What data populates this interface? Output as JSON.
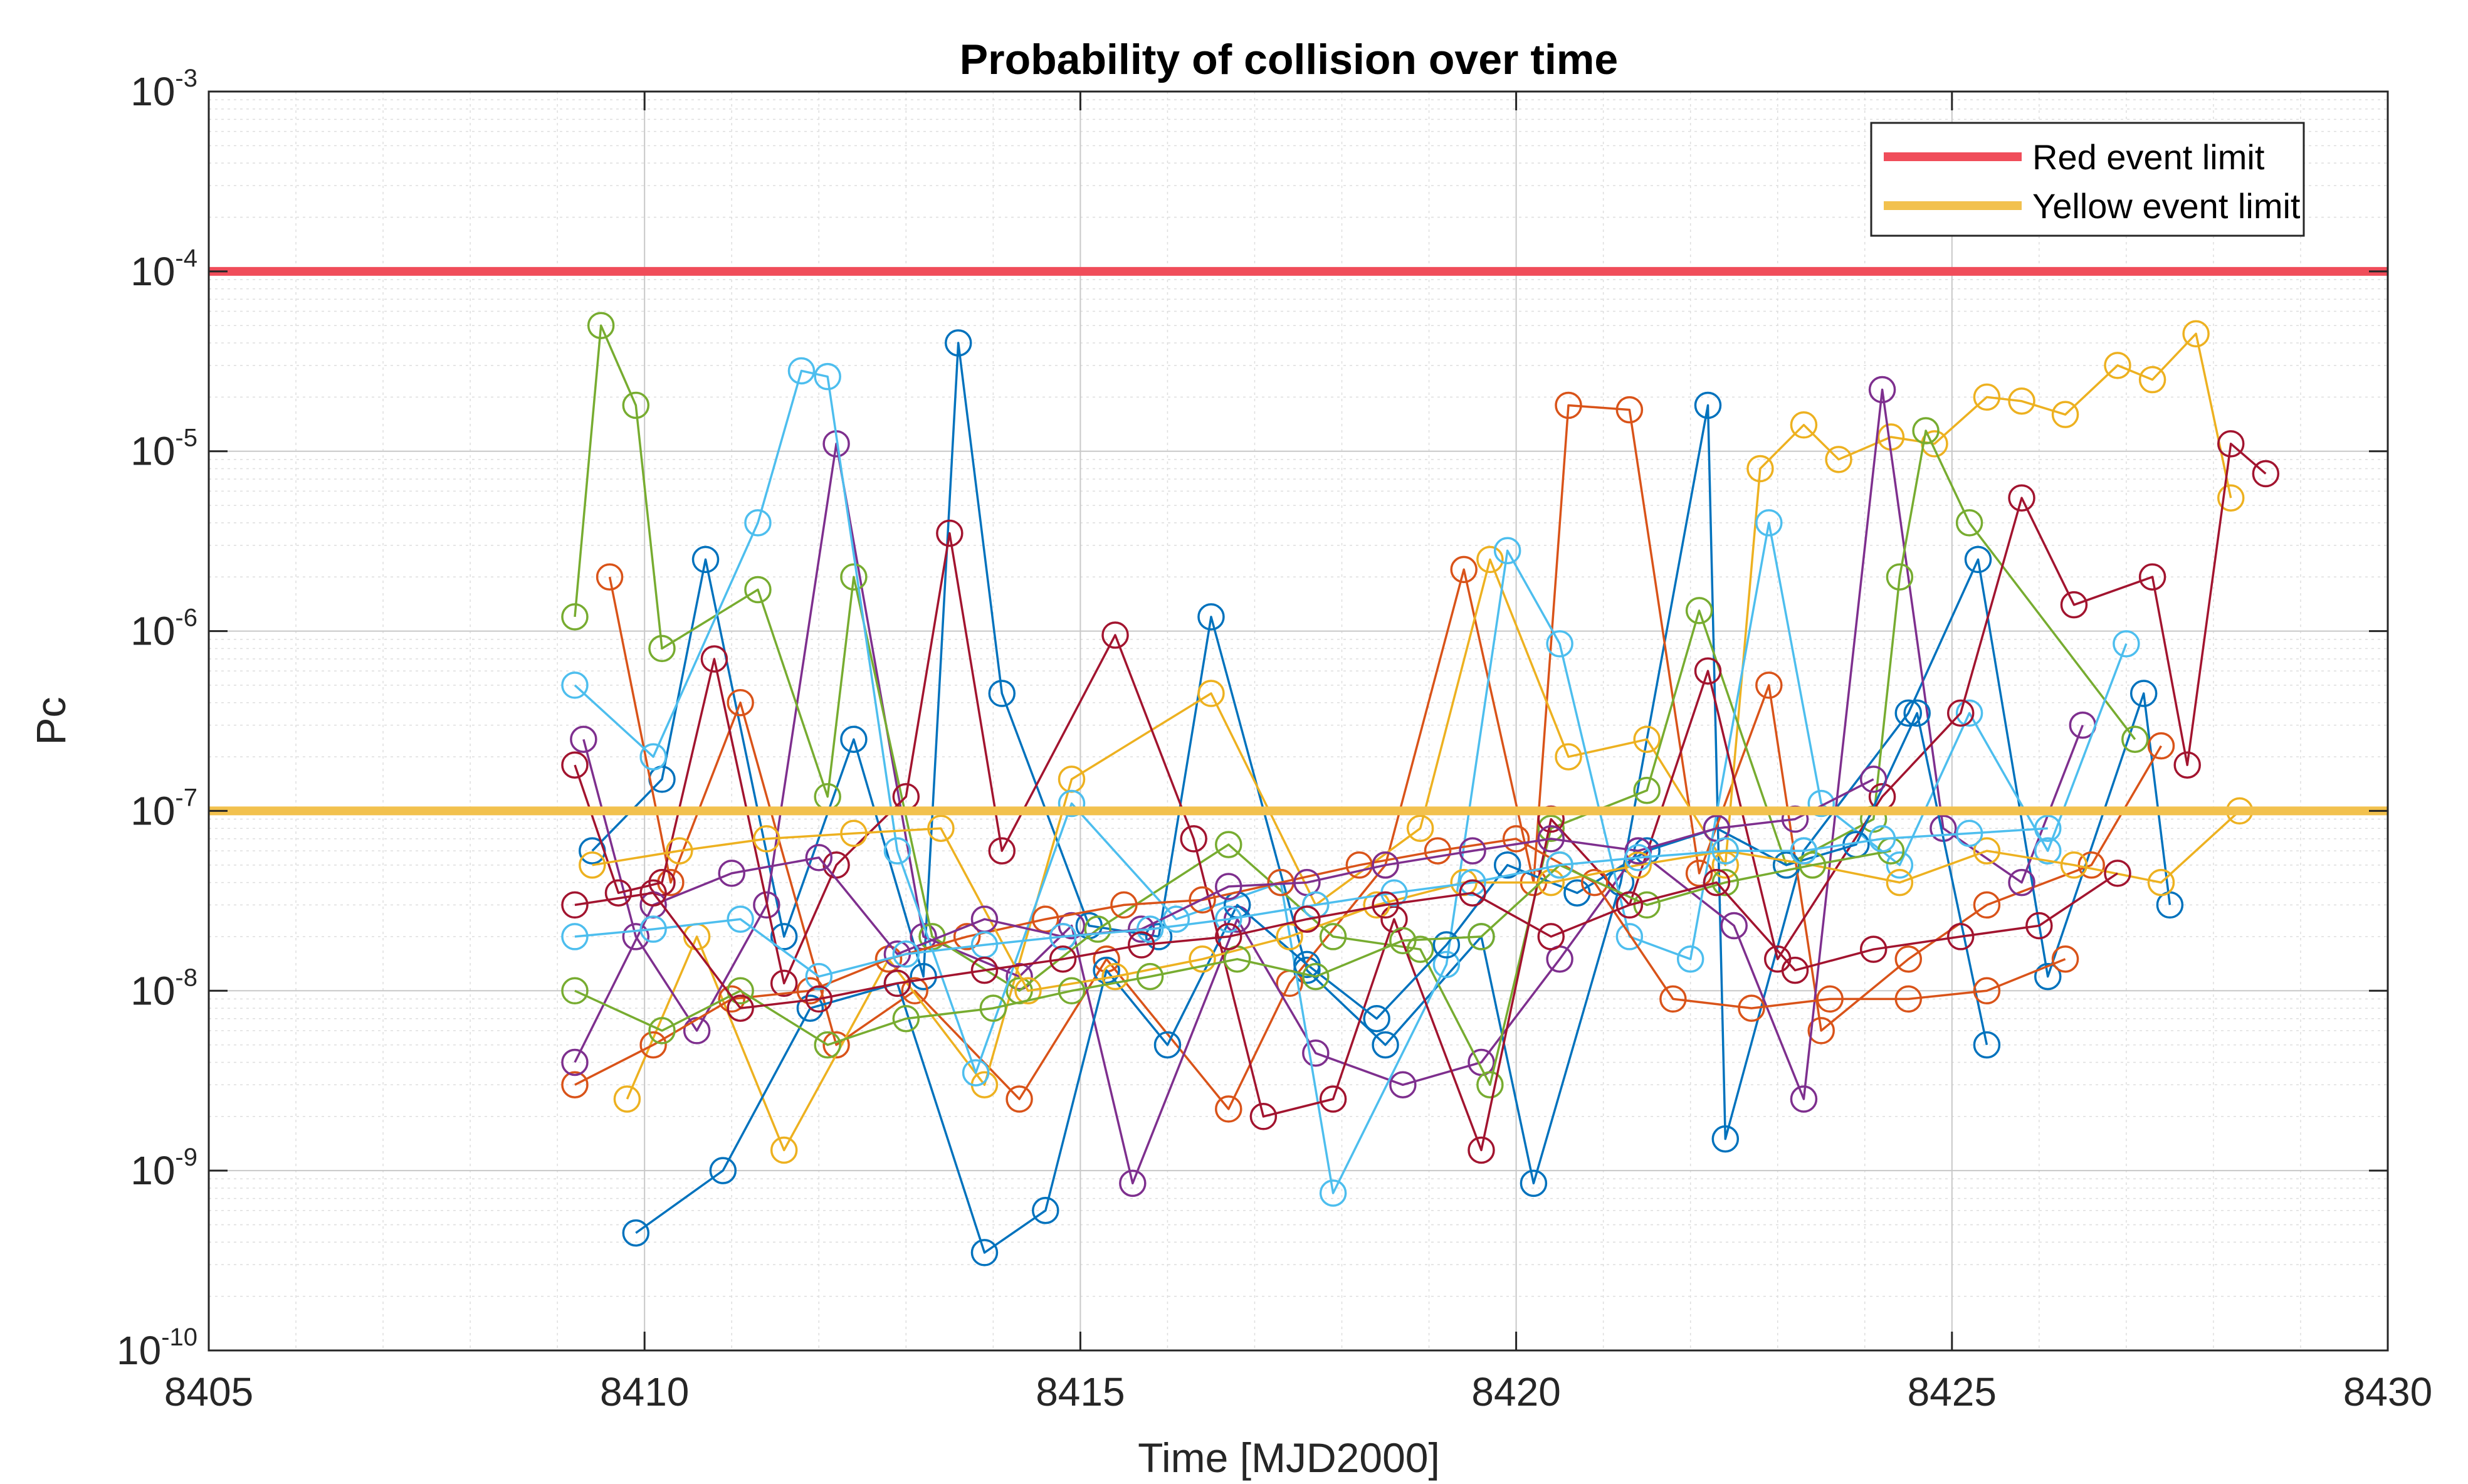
{
  "chart_data": {
    "type": "line",
    "title": "Probability of collision over time",
    "xlabel": "Time [MJD2000]",
    "ylabel": "Pc",
    "xlim": [
      8405,
      8430
    ],
    "ylim": [
      1e-10,
      0.001
    ],
    "yscale": "log",
    "grid": true,
    "minor_grid": true,
    "legend_position": "top-right",
    "x_ticks": [
      {
        "value": 8405,
        "label": "8405"
      },
      {
        "value": 8410,
        "label": "8410"
      },
      {
        "value": 8415,
        "label": "8415"
      },
      {
        "value": 8420,
        "label": "8420"
      },
      {
        "value": 8425,
        "label": "8425"
      },
      {
        "value": 8430,
        "label": "8430"
      }
    ],
    "y_ticks": [
      {
        "exp": -10,
        "base": "10",
        "sup": "-10"
      },
      {
        "exp": -9,
        "base": "10",
        "sup": "-9"
      },
      {
        "exp": -8,
        "base": "10",
        "sup": "-8"
      },
      {
        "exp": -7,
        "base": "10",
        "sup": "-7"
      },
      {
        "exp": -6,
        "base": "10",
        "sup": "-6"
      },
      {
        "exp": -5,
        "base": "10",
        "sup": "-5"
      },
      {
        "exp": -4,
        "base": "10",
        "sup": "-4"
      },
      {
        "exp": -3,
        "base": "10",
        "sup": "-3"
      }
    ],
    "thresholds": [
      {
        "name": "Red event limit",
        "value": 0.0001,
        "color": "#f04d5a"
      },
      {
        "name": "Yellow event limit",
        "value": 1e-07,
        "color": "#f2c14e"
      }
    ],
    "palette": [
      "#0072bd",
      "#d95319",
      "#edb120",
      "#7e2f8e",
      "#77ac30",
      "#4dbeee",
      "#a2142f"
    ],
    "series": [
      {
        "color": "#0072bd",
        "x": [
          8409.4,
          8410.2,
          8410.7,
          8411.6,
          8412.4,
          8413.2,
          8413.6,
          8414.1,
          8415.1,
          8415.9,
          8416.5,
          8417.6,
          8418.5,
          8419.6,
          8420.2,
          8421.2,
          8422.2,
          8422.4,
          8423.3,
          8424.5,
          8425.3,
          8426.1,
          8427.2,
          8427.5
        ],
        "y": [
          6e-08,
          1.5e-07,
          2.5e-06,
          2e-08,
          2.5e-07,
          1.2e-08,
          4e-05,
          4.5e-07,
          2.3e-08,
          2e-08,
          1.2e-06,
          1.3e-08,
          5e-09,
          2e-08,
          8.5e-10,
          4e-08,
          1.8e-05,
          1.5e-09,
          6e-08,
          3.5e-07,
          2.5e-06,
          1.2e-08,
          4.5e-07,
          3e-08
        ]
      },
      {
        "color": "#d95319",
        "x": [
          8409.6,
          8410.3,
          8411.1,
          8412.2,
          8413.1,
          8414.3,
          8415.3,
          8416.7,
          8417.4,
          8418.5,
          8419.4,
          8420.2,
          8420.6,
          8421.3,
          8422.1,
          8422.9,
          8423.5,
          8424.5,
          8425.4,
          8426.6,
          8427.4
        ],
        "y": [
          2e-06,
          4e-08,
          4e-07,
          5e-09,
          1e-08,
          2.5e-09,
          1.5e-08,
          2.2e-09,
          1.1e-08,
          5e-08,
          2.2e-06,
          4e-08,
          1.8e-05,
          1.7e-05,
          4.5e-08,
          5e-07,
          6e-09,
          1.5e-08,
          3e-08,
          5e-08,
          2.3e-07
        ]
      },
      {
        "color": "#edb120",
        "x": [
          8409.8,
          8410.6,
          8411.6,
          8412.8,
          8413.9,
          8414.9,
          8416.5,
          8417.7,
          8418.9,
          8419.7,
          8420.6,
          8421.5,
          8422.4,
          8422.8,
          8423.3,
          8423.7,
          8424.3,
          8424.8,
          8425.4,
          8425.8,
          8426.3,
          8426.9,
          8427.3,
          8427.8,
          8428.2
        ],
        "y": [
          2.5e-09,
          2e-08,
          1.3e-09,
          1.5e-08,
          3e-09,
          1.5e-07,
          4.5e-07,
          3e-08,
          8e-08,
          2.5e-06,
          2e-07,
          2.5e-07,
          5e-08,
          8e-06,
          1.4e-05,
          9e-06,
          1.2e-05,
          1.1e-05,
          2e-05,
          1.9e-05,
          1.6e-05,
          3e-05,
          2.5e-05,
          4.5e-05,
          5.5e-06
        ]
      },
      {
        "color": "#7e2f8e",
        "x": [
          8409.3,
          8409.9,
          8410.6,
          8411.4,
          8412.2,
          8413.2,
          8414.3,
          8414.9,
          8415.6,
          8416.8,
          8417.7,
          8418.7,
          8419.6,
          8420.5,
          8421.4,
          8422.5,
          8423.3,
          8424.2,
          8424.9,
          8425.8,
          8426.5
        ],
        "y": [
          2.5e-07,
          2e-08,
          6e-09,
          3e-08,
          1.1e-05,
          2e-08,
          1.2e-08,
          2.3e-08,
          8.5e-10,
          2.5e-08,
          4.5e-09,
          3e-09,
          4e-09,
          1.5e-08,
          6e-08,
          2.3e-08,
          2.5e-09,
          2.2e-05,
          8e-08,
          4e-08,
          3e-07
        ]
      },
      {
        "color": "#77ac30",
        "x": [
          8409.2,
          8409.5,
          8409.9,
          8410.2,
          8411.3,
          8412.1,
          8412.4,
          8413.3,
          8414.3,
          8415.2,
          8416.7,
          8417.9,
          8418.9,
          8419.7,
          8420.4,
          8421.5,
          8422.1,
          8423.1,
          8424.1,
          8424.4,
          8424.7,
          8425.2,
          8427.1
        ],
        "y": [
          1.2e-06,
          5e-05,
          1.8e-05,
          8e-07,
          1.7e-06,
          1.2e-07,
          2e-06,
          2e-08,
          1e-08,
          2.2e-08,
          6.5e-08,
          2e-08,
          1.7e-08,
          3e-09,
          8e-08,
          1.3e-07,
          1.3e-06,
          5e-08,
          9e-08,
          2e-06,
          1.3e-05,
          4e-06,
          2.5e-07
        ]
      },
      {
        "color": "#4dbeee",
        "x": [
          8409.2,
          8410.1,
          8411.3,
          8411.8,
          8412.1,
          8412.9,
          8413.8,
          8414.9,
          8416.1,
          8417.3,
          8417.9,
          8419.2,
          8419.9,
          8420.5,
          8421.3,
          8422.0,
          8422.9,
          8423.5,
          8424.4,
          8425.2,
          8426.1,
          8427.0
        ],
        "y": [
          5e-07,
          2e-07,
          4e-06,
          2.8e-05,
          2.6e-05,
          6e-08,
          3.5e-09,
          1.1e-07,
          2.5e-08,
          4e-08,
          7.5e-10,
          1.4e-08,
          2.8e-06,
          8.5e-07,
          2e-08,
          1.5e-08,
          4e-06,
          1.1e-07,
          5e-08,
          3.5e-07,
          6e-08,
          8.5e-07
        ]
      },
      {
        "color": "#a2142f",
        "x": [
          8409.2,
          8409.7,
          8410.2,
          8410.8,
          8411.6,
          8412.2,
          8413.0,
          8413.5,
          8414.1,
          8415.4,
          8416.3,
          8417.1,
          8417.9,
          8418.6,
          8419.6,
          8420.4,
          8421.3,
          8422.2,
          8423.0,
          8424.2,
          8425.1,
          8425.8,
          8426.4,
          8427.3,
          8427.7,
          8428.2,
          8428.6
        ],
        "y": [
          1.8e-07,
          3.5e-08,
          4e-08,
          7e-07,
          1.1e-08,
          5e-08,
          1.2e-07,
          3.5e-06,
          6e-08,
          9.5e-07,
          7e-08,
          2e-09,
          2.5e-09,
          2.5e-08,
          1.3e-09,
          9e-08,
          3e-08,
          6e-07,
          1.5e-08,
          1.2e-07,
          3.5e-07,
          5.5e-06,
          1.4e-06,
          2e-06,
          1.8e-07,
          1.1e-05,
          7.5e-06
        ]
      },
      {
        "color": "#0072bd",
        "x": [
          8409.9,
          8410.9,
          8411.9,
          8412.9,
          8413.9,
          8414.6,
          8415.3,
          8416.0,
          8416.8,
          8417.6,
          8418.4,
          8419.2,
          8419.9,
          8420.7,
          8421.5,
          8422.3,
          8423.1,
          8423.9,
          8424.6,
          8425.4
        ],
        "y": [
          4.5e-10,
          1e-09,
          8e-09,
          1.1e-08,
          3.5e-10,
          6e-10,
          1.3e-08,
          5e-09,
          3e-08,
          1.4e-08,
          7e-09,
          1.8e-08,
          5e-08,
          3.5e-08,
          6e-08,
          8e-08,
          5e-08,
          6.5e-08,
          3.5e-07,
          5e-09
        ]
      },
      {
        "color": "#d95319",
        "x": [
          8409.2,
          8410.1,
          8411.0,
          8411.9,
          8412.8,
          8413.7,
          8414.6,
          8415.5,
          8416.4,
          8417.3,
          8418.2,
          8419.1,
          8420.0,
          8420.9,
          8421.8,
          8422.7,
          8423.6,
          8424.5,
          8425.4,
          8426.3
        ],
        "y": [
          3e-09,
          5e-09,
          9e-09,
          1e-08,
          1.5e-08,
          2e-08,
          2.5e-08,
          3e-08,
          3.2e-08,
          4e-08,
          5e-08,
          6e-08,
          7e-08,
          4e-08,
          9e-09,
          8e-09,
          9e-09,
          9e-09,
          1e-08,
          1.5e-08
        ]
      },
      {
        "color": "#edb120",
        "x": [
          8409.4,
          8410.4,
          8411.4,
          8412.4,
          8413.4,
          8414.4,
          8415.4,
          8416.4,
          8417.4,
          8418.4,
          8419.4,
          8420.4,
          8421.4,
          8422.4,
          8423.4,
          8424.4,
          8425.4,
          8426.4,
          8427.4,
          8428.3
        ],
        "y": [
          5e-08,
          6e-08,
          7e-08,
          7.5e-08,
          8e-08,
          1e-08,
          1.2e-08,
          1.5e-08,
          2e-08,
          3e-08,
          4e-08,
          4e-08,
          5e-08,
          6e-08,
          5e-08,
          4e-08,
          6e-08,
          5e-08,
          4e-08,
          1e-07
        ]
      },
      {
        "color": "#7e2f8e",
        "x": [
          8409.2,
          8410.1,
          8411.0,
          8412.0,
          8412.9,
          8413.9,
          8414.8,
          8415.7,
          8416.7,
          8417.6,
          8418.5,
          8419.5,
          8420.4,
          8421.4,
          8422.3,
          8423.2,
          8424.1
        ],
        "y": [
          4e-09,
          3e-08,
          4.5e-08,
          5.5e-08,
          1.6e-08,
          2.5e-08,
          2e-08,
          2.2e-08,
          3.8e-08,
          4e-08,
          5e-08,
          6e-08,
          7e-08,
          6e-08,
          8e-08,
          9e-08,
          1.5e-07
        ]
      },
      {
        "color": "#77ac30",
        "x": [
          8409.2,
          8410.2,
          8411.1,
          8412.1,
          8413.0,
          8414.0,
          8414.9,
          8415.8,
          8416.8,
          8417.7,
          8418.7,
          8419.6,
          8420.5,
          8421.5,
          8422.4,
          8423.4,
          8424.3
        ],
        "y": [
          1e-08,
          6e-09,
          1e-08,
          5e-09,
          7e-09,
          8e-09,
          1e-08,
          1.2e-08,
          1.5e-08,
          1.2e-08,
          1.9e-08,
          2e-08,
          5e-08,
          3e-08,
          4e-08,
          5e-08,
          6e-08
        ]
      },
      {
        "color": "#4dbeee",
        "x": [
          8409.2,
          8410.1,
          8411.1,
          8412.0,
          8413.0,
          8413.9,
          8414.8,
          8415.8,
          8416.7,
          8417.7,
          8418.6,
          8419.5,
          8420.5,
          8421.4,
          8422.4,
          8423.3,
          8424.2,
          8425.2,
          8426.1
        ],
        "y": [
          2e-08,
          2.2e-08,
          2.5e-08,
          1.2e-08,
          1.6e-08,
          1.8e-08,
          2e-08,
          2.2e-08,
          2.5e-08,
          3e-08,
          3.5e-08,
          4e-08,
          5e-08,
          5.5e-08,
          6e-08,
          6e-08,
          7e-08,
          7.5e-08,
          8e-08
        ]
      },
      {
        "color": "#a2142f",
        "x": [
          8409.2,
          8410.1,
          8411.1,
          8412.0,
          8412.9,
          8413.9,
          8414.8,
          8415.7,
          8416.7,
          8417.6,
          8418.5,
          8419.5,
          8420.4,
          8421.3,
          8422.3,
          8423.2,
          8424.1,
          8425.1,
          8426.0,
          8426.9
        ],
        "y": [
          3e-08,
          3.5e-08,
          8e-09,
          9e-09,
          1.1e-08,
          1.3e-08,
          1.5e-08,
          1.8e-08,
          2e-08,
          2.5e-08,
          3e-08,
          3.5e-08,
          2e-08,
          3e-08,
          4e-08,
          1.3e-08,
          1.7e-08,
          2e-08,
          2.3e-08,
          4.5e-08
        ]
      }
    ]
  }
}
